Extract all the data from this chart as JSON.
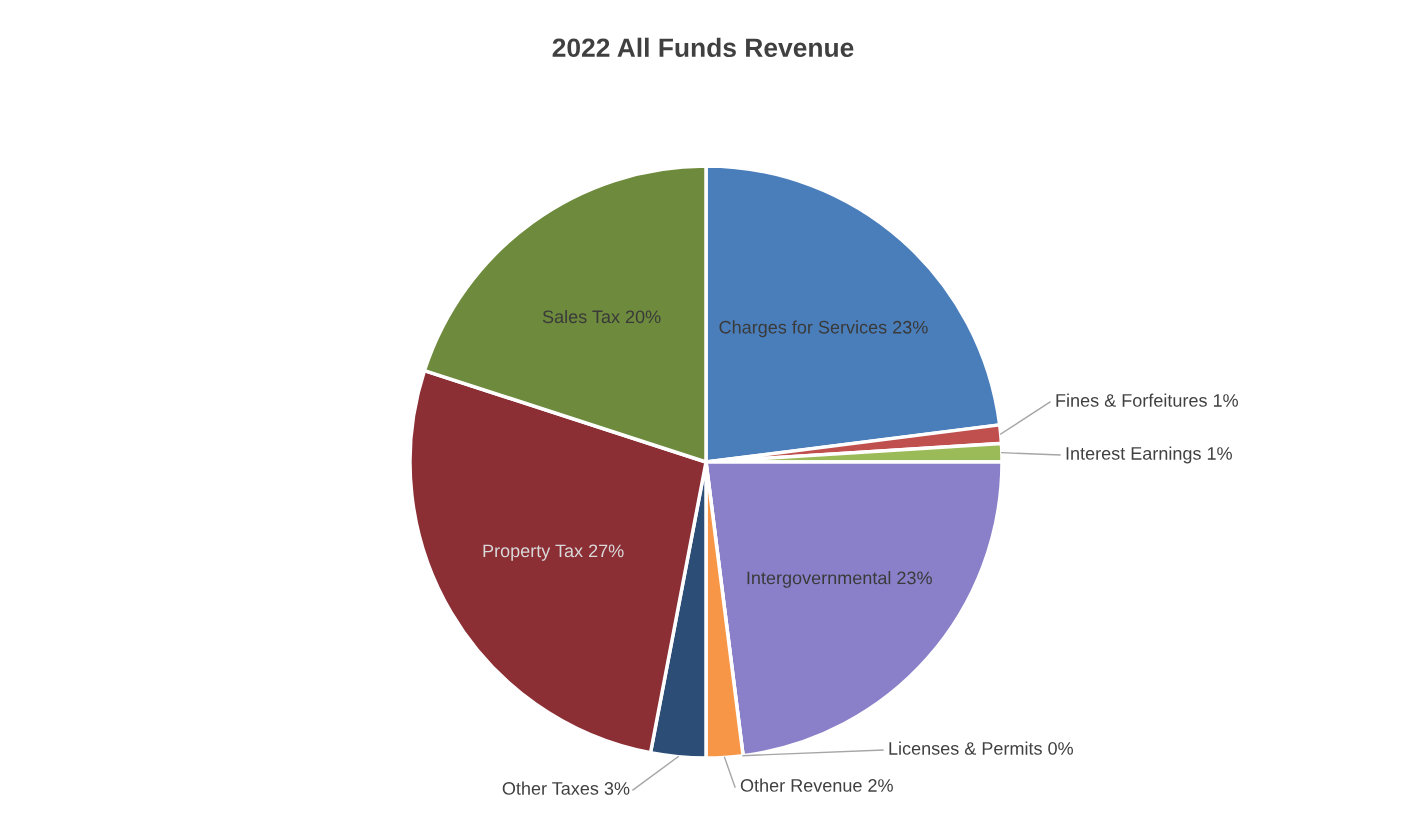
{
  "chart_data": {
    "type": "pie",
    "title": "2022 All Funds Revenue",
    "categories": [
      "Charges for Services 23%",
      "Fines & Forfeitures 1%",
      "Interest Earnings 1%",
      "Intergovernmental 23%",
      "Licenses & Permits 0%",
      "Other Revenue 2%",
      "Other Taxes 3%",
      "Property Tax 27%",
      "Sales Tax 20%"
    ],
    "values": [
      23,
      1,
      1,
      23,
      0,
      2,
      3,
      27,
      20
    ],
    "colors": [
      "#4a7ebb",
      "#c0504d",
      "#9bbb59",
      "#8a80c9",
      "#4bacc6",
      "#f79646",
      "#2c4d75",
      "#8b2f35",
      "#6e8a3c"
    ],
    "legend": false
  }
}
